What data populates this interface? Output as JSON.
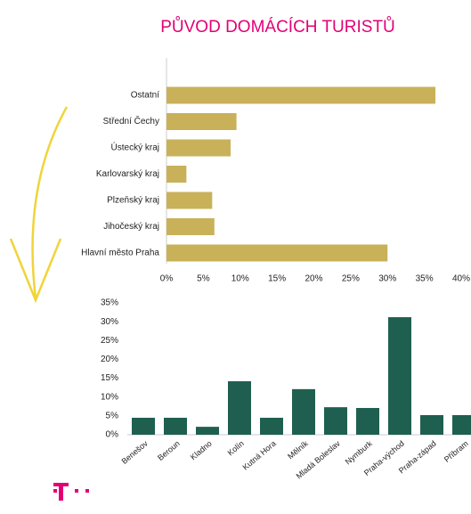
{
  "chart_data": [
    {
      "type": "hbar",
      "title": "PŮVOD DOMÁCÍCH TURISTŮ",
      "categories": [
        "Ostatní",
        "Střední Čechy",
        "Ústecký kraj",
        "Karlovarský kraj",
        "Plzeňský kraj",
        "Jihočeský kraj",
        "Hlavní město Praha"
      ],
      "values": [
        36.5,
        9.5,
        8.7,
        2.7,
        6.2,
        6.5,
        30.0
      ],
      "color": "#c9b15a",
      "xlim": [
        0,
        40
      ],
      "xticks": [
        {
          "value": 0,
          "label": "0%"
        },
        {
          "value": 5,
          "label": "5%"
        },
        {
          "value": 10,
          "label": "10%"
        },
        {
          "value": 15,
          "label": "15%"
        },
        {
          "value": 20,
          "label": "20%"
        },
        {
          "value": 25,
          "label": "25%"
        },
        {
          "value": 30,
          "label": "30%"
        },
        {
          "value": 35,
          "label": "35%"
        },
        {
          "value": 40,
          "label": "40%"
        }
      ]
    },
    {
      "type": "bar",
      "categories": [
        "Benešov",
        "Beroun",
        "Kladno",
        "Kolín",
        "Kutná Hora",
        "Mělník",
        "Mladá Boleslav",
        "Nymburk",
        "Praha-východ",
        "Praha-západ",
        "Příbram"
      ],
      "values": [
        4.5,
        4.5,
        2.1,
        14.2,
        4.5,
        12.1,
        7.3,
        7.1,
        31.2,
        5.2,
        5.2
      ],
      "color": "#1f5f50",
      "ylim": [
        0,
        35
      ],
      "yticks": [
        {
          "value": 0,
          "label": "0%"
        },
        {
          "value": 5,
          "label": "5%"
        },
        {
          "value": 10,
          "label": "10%"
        },
        {
          "value": 15,
          "label": "15%"
        },
        {
          "value": 20,
          "label": "20%"
        },
        {
          "value": 25,
          "label": "25%"
        },
        {
          "value": 30,
          "label": "30%"
        },
        {
          "value": 35,
          "label": "35%"
        }
      ]
    }
  ]
}
